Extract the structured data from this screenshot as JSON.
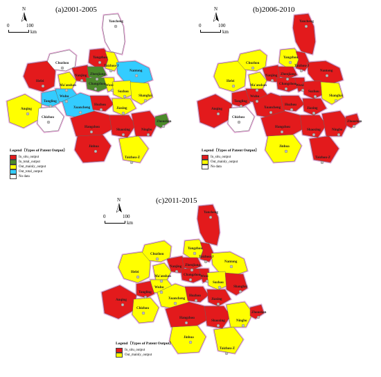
{
  "colors": {
    "in_situ_output": "#e31a1c",
    "in_total_output": "#4c8a2a",
    "out_mainly_output": "#ffff00",
    "out_total_output": "#33ccff",
    "no_data": "#ffffff",
    "boundary_halo": "#e6a8d8"
  },
  "north_arrow_label": "N",
  "scale": {
    "zero": "0",
    "hundred": "100",
    "unit": "km"
  },
  "legend_title": "Legend〔Types of Patent Output〕",
  "panels": [
    {
      "title": "(a)2001-2005",
      "legend": [
        {
          "label": "In_situ_output",
          "color": "#e31a1c"
        },
        {
          "label": "In_total_output",
          "color": "#4c8a2a"
        },
        {
          "label": "Out_mainly_output",
          "color": "#ffff00"
        },
        {
          "label": "Out_total_output",
          "color": "#33ccff"
        },
        {
          "label": "No data",
          "color": "#ffffff"
        }
      ],
      "cities": [
        "Yancheng",
        "Chuzhou",
        "Yangzhou",
        "Taizhou-J",
        "Nantong",
        "Hefei",
        "Ma'anshan",
        "Nanjing",
        "Zhenjiang",
        "Changzhou",
        "Wuxi",
        "Suzhou",
        "Shanghai",
        "Wuhu",
        "Tongling",
        "Xuancheng",
        "Anqing",
        "Chizhou",
        "Huzhou",
        "Jiaxing",
        "Hangzhou",
        "Shaoxing",
        "Ningbo",
        "Zhoushan",
        "Jinhua",
        "Taizhou-Z"
      ]
    },
    {
      "title": "(b)2006-2010",
      "legend": [
        {
          "label": "In_situ_output",
          "color": "#e31a1c"
        },
        {
          "label": "Out_mainly_output",
          "color": "#ffff00"
        },
        {
          "label": "No data",
          "color": "#ffffff"
        }
      ],
      "cities": [
        "Yancheng",
        "Chuzhou",
        "Yangzhou",
        "Taizhou-J",
        "Nantong",
        "Hefei",
        "Ma'anshan",
        "Nanjing",
        "Zhenjiang",
        "Changzhou",
        "Wuxi",
        "Suzhou",
        "Shanghai",
        "Wuhu",
        "Tongling",
        "Xuancheng",
        "Anqing",
        "Chizhou",
        "Huzhou",
        "Jiaxing",
        "Hangzhou",
        "Shaoxing",
        "Ningbo",
        "Zhoushan",
        "Jinhua",
        "Taizhou-Z"
      ]
    },
    {
      "title": "(c)2011-2015",
      "legend": [
        {
          "label": "In_situ_output",
          "color": "#e31a1c"
        },
        {
          "label": "Out_mainly_output",
          "color": "#ffff00"
        }
      ],
      "cities": [
        "Yancheng",
        "Chuzhou",
        "Yangzhou",
        "Taizhou-J",
        "Nantong",
        "Hefei",
        "Ma'anshan",
        "Nanjing",
        "Zhenjiang",
        "Changzhou",
        "Wuxi",
        "Suzhou",
        "Shanghai",
        "Wuhu",
        "Tongling",
        "Xuancheng",
        "Anqing",
        "Chizhou",
        "Huzhou",
        "Jiaxing",
        "Hangzhou",
        "Shaoxing",
        "Ningbo",
        "Zhoushan",
        "Jinhua",
        "Taizhou-Z"
      ]
    }
  ]
}
